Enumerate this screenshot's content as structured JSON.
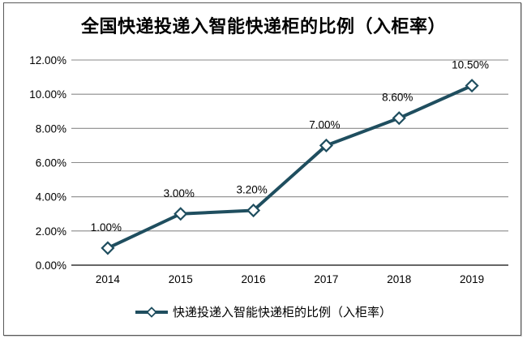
{
  "frame": {
    "border_color": "#595959"
  },
  "chart_data": {
    "type": "line",
    "title": "全国快递投递入智能快递柜的比例（入柜率）",
    "categories": [
      "2014",
      "2015",
      "2016",
      "2017",
      "2018",
      "2019"
    ],
    "series": [
      {
        "name": "快递投递入智能快递柜的比例（入柜率）",
        "values": [
          1.0,
          3.0,
          3.2,
          7.0,
          8.6,
          10.5
        ],
        "data_labels": [
          "1.00%",
          "3.00%",
          "3.20%",
          "7.00%",
          "8.60%",
          "10.50%"
        ],
        "color": "#1f4e5f",
        "marker": "diamond",
        "marker_fill": "#ffffff"
      }
    ],
    "xlabel": "",
    "ylabel": "",
    "ylim": [
      0,
      12
    ],
    "ytick_interval": 2,
    "ytick_labels": [
      "0.00%",
      "2.00%",
      "4.00%",
      "6.00%",
      "8.00%",
      "10.00%",
      "12.00%"
    ],
    "grid": "horizontal",
    "gridline_color": "#8a8a8a",
    "axis_line_color": "#333333",
    "tick_text_color": "#000000",
    "data_label_color": "#000000",
    "legend_position": "bottom"
  }
}
